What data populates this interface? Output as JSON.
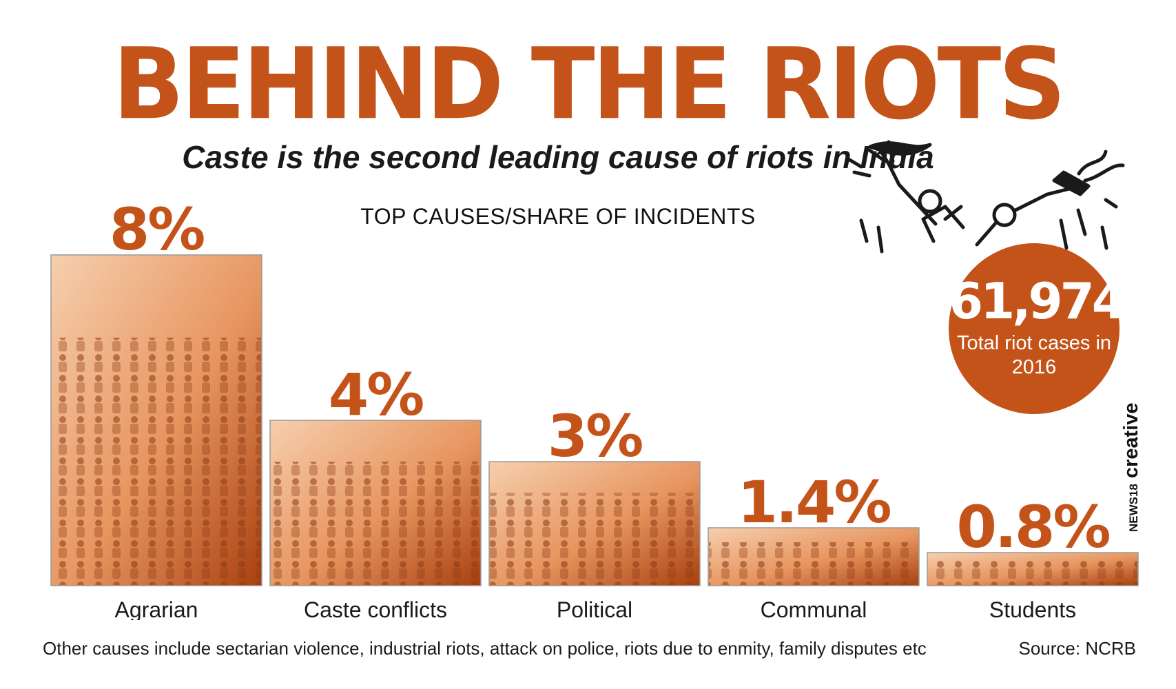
{
  "header": {
    "title": "BEHIND THE RIOTS",
    "subtitle": "Caste is the second leading cause of riots in India",
    "section_label": "TOP CAUSES/SHARE OF INCIDENTS"
  },
  "total_badge": {
    "value": "61,974",
    "caption": "Total riot cases in 2016"
  },
  "footer": {
    "note": "Other causes include sectarian violence, industrial riots, attack on police, riots due to enmity, family disputes etc",
    "source": "Source: NCRB"
  },
  "watermark": {
    "brand": "NEWS18",
    "word": "creative"
  },
  "colors": {
    "accent": "#c4531a",
    "photo_light": "#f6cfae",
    "photo_mid": "#e7955f",
    "photo_dark": "#a8400f"
  },
  "chart_data": {
    "type": "bar",
    "title": "TOP CAUSES/SHARE OF INCIDENTS",
    "categories": [
      "Agrarian",
      "Caste conflicts",
      "Political",
      "Communal",
      "Students"
    ],
    "values": [
      8,
      4,
      3,
      1.4,
      0.8
    ],
    "value_labels": [
      "8%",
      "4%",
      "3%",
      "1.4%",
      "0.8%"
    ],
    "unit": "%",
    "ylim": [
      0,
      8
    ],
    "grid": false,
    "legend": "none"
  }
}
